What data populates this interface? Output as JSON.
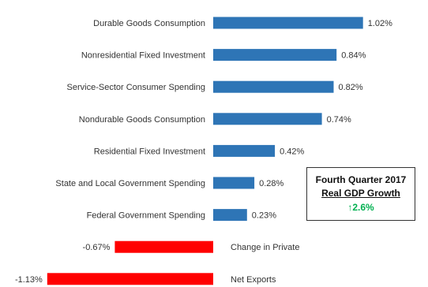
{
  "chart_data": {
    "type": "bar",
    "orientation": "horizontal",
    "categories": [
      "Durable Goods Consumption",
      "Nonresidential Fixed Investment",
      "Service-Sector Consumer Spending",
      "Nondurable Goods Consumption",
      "Residential Fixed Investment",
      "State and Local Government Spending",
      "Federal Government Spending",
      "Change in Private",
      "Net Exports"
    ],
    "values": [
      1.02,
      0.84,
      0.82,
      0.74,
      0.42,
      0.28,
      0.23,
      -0.67,
      -1.13
    ],
    "value_labels": [
      "1.02%",
      "0.84%",
      "0.82%",
      "0.74%",
      "0.42%",
      "0.28%",
      "0.23%",
      "-0.67%",
      "-1.13%"
    ],
    "xlim": [
      -1.13,
      1.1
    ],
    "grid": false,
    "colors": {
      "positive": "#2e75b6",
      "negative": "#ff0000"
    }
  },
  "callout": {
    "line1": "Fourth Quarter 2017",
    "line2": "Real GDP Growth",
    "arrow": "↑",
    "value": "2.6%",
    "value_color": "#00b050"
  }
}
